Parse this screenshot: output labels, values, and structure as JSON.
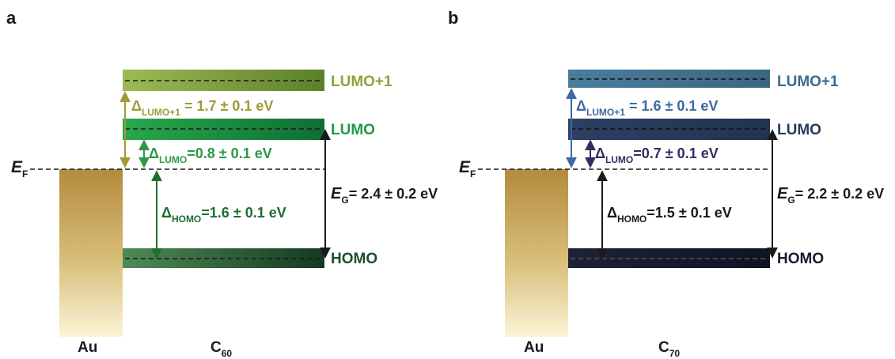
{
  "panel_a": {
    "letter": "a",
    "fermi": {
      "main": "E",
      "sub": "F"
    },
    "metal_label": "Au",
    "molecule": {
      "main": "C",
      "sub": "60"
    },
    "levels": {
      "lumo1": "LUMO+1",
      "lumo": "LUMO",
      "homo": "HOMO"
    },
    "delta_lumo1": {
      "main": "Δ",
      "sub": "LUMO+1",
      "value": " = 1.7 ± 0.1 eV"
    },
    "delta_lumo": {
      "main": "Δ",
      "sub": "LUMO",
      "value": "=0.8 ± 0.1 eV"
    },
    "delta_homo": {
      "main": "Δ",
      "sub": "HOMO",
      "value": "=1.6 ± 0.1 eV"
    },
    "gap": {
      "main": "E",
      "sub": "G",
      "value": "= 2.4 ± 0.2 eV"
    },
    "colors": {
      "lumo1": "#8aa53c",
      "lumo": "#1f9a4a",
      "homo": "#1f4e2c",
      "arrow_lumo1": "#9e9a3a",
      "arrow_lumo": "#2a9a45",
      "arrow_homo": "#1f6e30"
    }
  },
  "panel_b": {
    "letter": "b",
    "fermi": {
      "main": "E",
      "sub": "F"
    },
    "metal_label": "Au",
    "molecule": {
      "main": "C",
      "sub": "70"
    },
    "levels": {
      "lumo1": "LUMO+1",
      "lumo": "LUMO",
      "homo": "HOMO"
    },
    "delta_lumo1": {
      "main": "Δ",
      "sub": "LUMO+1",
      "value": " = 1.6 ± 0.1 eV"
    },
    "delta_lumo": {
      "main": "Δ",
      "sub": "LUMO",
      "value": "=0.7 ± 0.1 eV"
    },
    "delta_homo": {
      "main": "Δ",
      "sub": "HOMO",
      "value": "=1.5 ± 0.1 eV"
    },
    "gap": {
      "main": "E",
      "sub": "G",
      "value": "= 2.2 ± 0.2 eV"
    },
    "colors": {
      "lumo1": "#3b6a8c",
      "lumo": "#2a3a5c",
      "homo": "#161b2c",
      "arrow_lumo1": "#3b6aa0",
      "arrow_lumo": "#2f2f60",
      "arrow_homo": "#1a1a1a"
    }
  }
}
